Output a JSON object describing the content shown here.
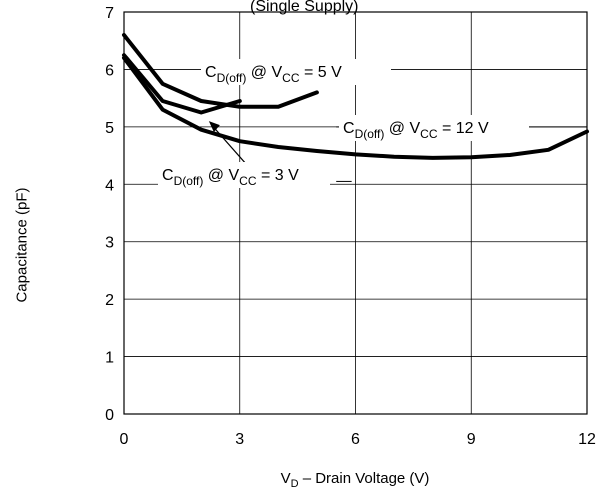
{
  "chart_data": {
    "type": "line",
    "title": "(Single Supply)",
    "xlabel": {
      "main": "V",
      "sub": "D",
      "rest": " – Drain Voltage (V)"
    },
    "ylabel": "Capacitance (pF)",
    "xlim": [
      0,
      12
    ],
    "ylim": [
      0,
      7
    ],
    "xticks": [
      0,
      3,
      6,
      9,
      12
    ],
    "yticks": [
      0,
      1,
      2,
      3,
      4,
      5,
      6,
      7
    ],
    "grid": true,
    "series": [
      {
        "name": "C_D(off) @ V_CC = 5 V",
        "x": [
          0,
          1,
          2,
          3,
          4,
          5
        ],
        "y": [
          6.6,
          5.75,
          5.45,
          5.35,
          5.35,
          5.6
        ]
      },
      {
        "name": "C_D(off) @ V_CC = 3 V",
        "x": [
          0,
          1,
          2,
          3
        ],
        "y": [
          6.25,
          5.45,
          5.25,
          5.45
        ]
      },
      {
        "name": "C_D(off) @ V_CC = 12 V",
        "x": [
          0,
          1,
          2,
          3,
          4,
          5,
          6,
          7,
          8,
          9,
          10,
          11,
          12
        ],
        "y": [
          6.2,
          5.3,
          4.95,
          4.75,
          4.65,
          4.58,
          4.52,
          4.48,
          4.46,
          4.47,
          4.51,
          4.6,
          4.92
        ]
      }
    ],
    "annotations": [
      {
        "series_index": 0,
        "parts": [
          "C",
          "D(off)",
          " @ V",
          "CC",
          " = 5 V"
        ]
      },
      {
        "series_index": 2,
        "parts": [
          "C",
          "D(off)",
          " @ V",
          "CC",
          " = 12 V"
        ]
      },
      {
        "series_index": 1,
        "parts": [
          "C",
          "D(off)",
          " @ V",
          "CC",
          " = 3 V"
        ]
      }
    ]
  }
}
